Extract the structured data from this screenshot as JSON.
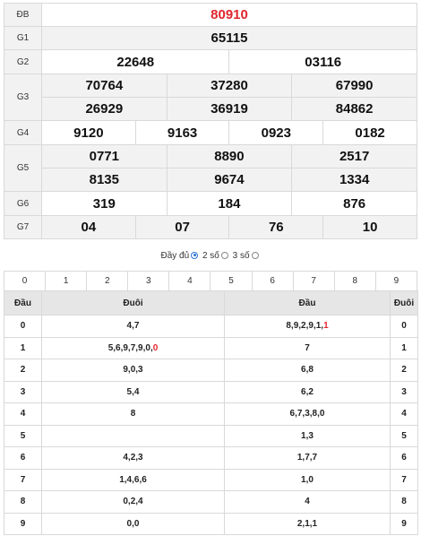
{
  "results": {
    "rows": [
      {
        "label": "ĐB",
        "numbers": [
          "80910"
        ],
        "special": true
      },
      {
        "label": "G1",
        "numbers": [
          "65115"
        ]
      },
      {
        "label": "G2",
        "numbers": [
          "22648",
          "03116"
        ]
      },
      {
        "label": "G3",
        "numbers": [
          "70764",
          "37280",
          "67990",
          "26929",
          "36919",
          "84862"
        ]
      },
      {
        "label": "G4",
        "numbers": [
          "9120",
          "9163",
          "0923",
          "0182"
        ]
      },
      {
        "label": "G5",
        "numbers": [
          "0771",
          "8890",
          "2517",
          "8135",
          "9674",
          "1334"
        ]
      },
      {
        "label": "G6",
        "numbers": [
          "319",
          "184",
          "876"
        ]
      },
      {
        "label": "G7",
        "numbers": [
          "04",
          "07",
          "76",
          "10"
        ]
      }
    ]
  },
  "mode": {
    "full_label": "Đầy đủ",
    "two_label": "2 số",
    "three_label": "3 số",
    "selected": "full"
  },
  "digits": [
    "0",
    "1",
    "2",
    "3",
    "4",
    "5",
    "6",
    "7",
    "8",
    "9"
  ],
  "loto": {
    "headers": [
      "Đầu",
      "Đuôi",
      "Đầu",
      "Đuôi"
    ],
    "rows": [
      {
        "dau": "0",
        "duoi_list": "4,7",
        "dau_list": "8,9,2,9,1,",
        "dau_list_red": "1",
        "duoi": "0"
      },
      {
        "dau": "1",
        "duoi_list": "5,6,9,7,9,0,",
        "duoi_list_red": "0",
        "dau_list": "7",
        "duoi": "1"
      },
      {
        "dau": "2",
        "duoi_list": "9,0,3",
        "dau_list": "6,8",
        "duoi": "2"
      },
      {
        "dau": "3",
        "duoi_list": "5,4",
        "dau_list": "6,2",
        "duoi": "3"
      },
      {
        "dau": "4",
        "duoi_list": "8",
        "dau_list": "6,7,3,8,0",
        "duoi": "4"
      },
      {
        "dau": "5",
        "duoi_list": "",
        "dau_list": "1,3",
        "duoi": "5"
      },
      {
        "dau": "6",
        "duoi_list": "4,2,3",
        "dau_list": "1,7,7",
        "duoi": "6"
      },
      {
        "dau": "7",
        "duoi_list": "1,4,6,6",
        "dau_list": "1,0",
        "duoi": "7"
      },
      {
        "dau": "8",
        "duoi_list": "0,2,4",
        "dau_list": "4",
        "duoi": "8"
      },
      {
        "dau": "9",
        "duoi_list": "0,0",
        "dau_list": "2,1,1",
        "duoi": "9"
      }
    ]
  },
  "colors": {
    "special": "#e0262d",
    "radio": "#2a74d4",
    "header_bg": "#e6e6e6",
    "label_bg": "#f2f2f2"
  }
}
